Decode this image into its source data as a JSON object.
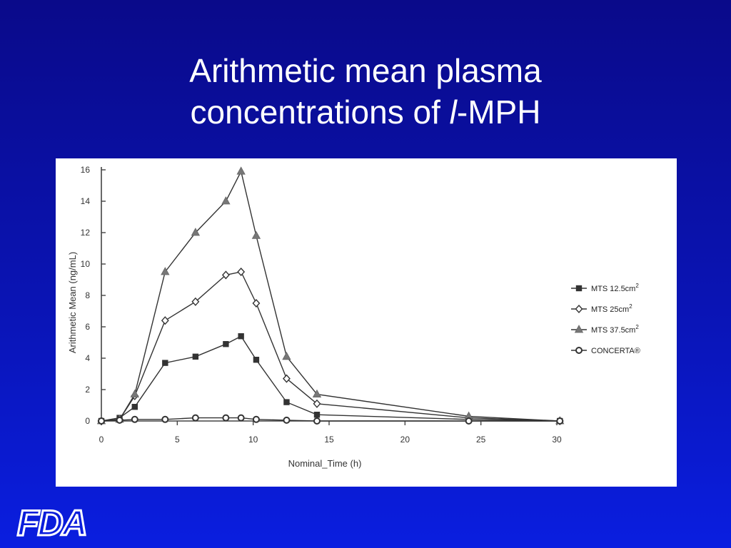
{
  "slide": {
    "title_line1": "Arithmetic mean plasma",
    "title_line2_prefix": "concentrations of ",
    "title_italic": "l",
    "title_line2_suffix": "-MPH",
    "logo_text": "FDA"
  },
  "chart_data": {
    "type": "line",
    "title": "",
    "xlabel": "Nominal_Time (h)",
    "ylabel": "Arithmetic Mean (ng/mL)",
    "xlim": [
      0,
      30
    ],
    "ylim": [
      0,
      16
    ],
    "xticks": [
      0,
      5,
      10,
      15,
      20,
      25,
      30
    ],
    "yticks": [
      0,
      2,
      4,
      6,
      8,
      10,
      12,
      14,
      16
    ],
    "grid": false,
    "legend_position": "right",
    "colors": {
      "series": "#333333",
      "axis": "#444444"
    },
    "series": [
      {
        "name": "MTS 12.5cm",
        "name_sup": "2",
        "marker": "square-filled",
        "x": [
          0,
          1.2,
          2.2,
          4.2,
          6.2,
          8.2,
          9.2,
          10.2,
          12.2,
          14.2,
          24.2,
          30.2
        ],
        "y": [
          0,
          0.2,
          0.9,
          3.7,
          4.1,
          4.9,
          5.4,
          3.9,
          1.2,
          0.4,
          0.1,
          0
        ]
      },
      {
        "name": "MTS 25cm",
        "name_sup": "2",
        "marker": "diamond-open",
        "x": [
          0,
          1.2,
          2.2,
          4.2,
          6.2,
          8.2,
          9.2,
          10.2,
          12.2,
          14.2,
          24.2,
          30.2
        ],
        "y": [
          0,
          0.1,
          1.6,
          6.4,
          7.6,
          9.3,
          9.5,
          7.5,
          2.7,
          1.1,
          0.2,
          0
        ]
      },
      {
        "name": "MTS 37.5cm",
        "name_sup": "2",
        "marker": "triangle-filled",
        "x": [
          0,
          1.2,
          2.2,
          4.2,
          6.2,
          8.2,
          9.2,
          10.2,
          12.2,
          14.2,
          24.2,
          30.2
        ],
        "y": [
          0,
          0.1,
          1.7,
          9.5,
          12.0,
          14.0,
          15.9,
          11.8,
          4.1,
          1.7,
          0.3,
          0
        ]
      },
      {
        "name": "CONCERTA®",
        "name_sup": "",
        "marker": "circle-open",
        "x": [
          0,
          1.2,
          2.2,
          4.2,
          6.2,
          8.2,
          9.2,
          10.2,
          12.2,
          14.2,
          24.2,
          30.2
        ],
        "y": [
          0,
          0.05,
          0.1,
          0.1,
          0.2,
          0.2,
          0.2,
          0.1,
          0.05,
          0,
          0,
          0
        ]
      }
    ]
  }
}
